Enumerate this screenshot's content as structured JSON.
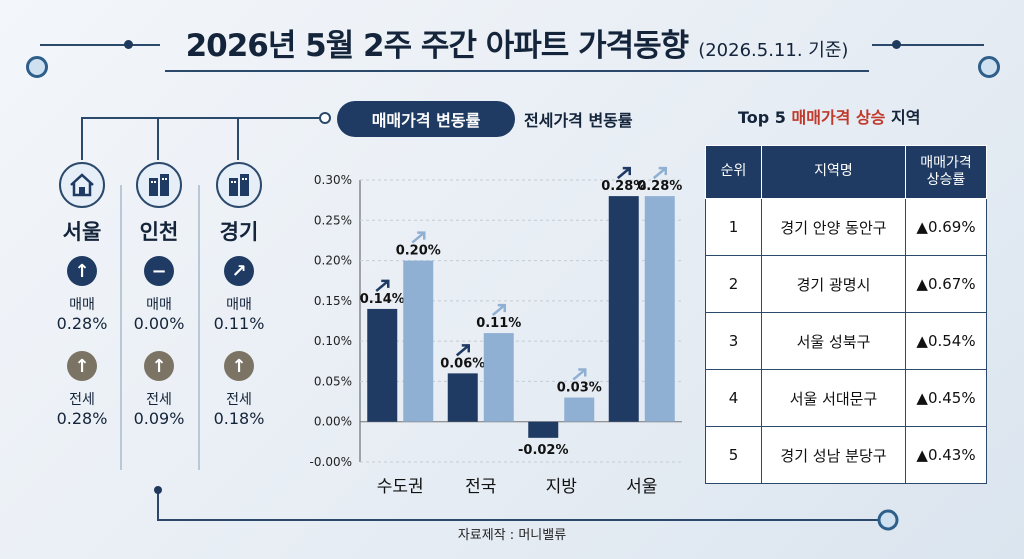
{
  "title": {
    "main": "2026년 5월 2주 주간 아파트 가격동향",
    "sub": "(2026.5.11. 기준)"
  },
  "tabs": {
    "active": "매매가격 변동률",
    "inactive": "전세가격 변동률"
  },
  "regions": [
    {
      "name": "서울",
      "icon": "house-icon",
      "trade_label": "매매",
      "trade_value": "0.28%",
      "trade_trend": "up",
      "lease_label": "전세",
      "lease_value": "0.28%",
      "lease_trend": "up"
    },
    {
      "name": "인천",
      "icon": "buildings-icon",
      "trade_label": "매매",
      "trade_value": "0.00%",
      "trade_trend": "flat",
      "lease_label": "전세",
      "lease_value": "0.09%",
      "lease_trend": "up"
    },
    {
      "name": "경기",
      "icon": "buildings-icon",
      "trade_label": "매매",
      "trade_value": "0.11%",
      "trade_trend": "rising",
      "lease_label": "전세",
      "lease_value": "0.18%",
      "lease_trend": "up"
    }
  ],
  "chart_data": {
    "type": "bar",
    "categories": [
      "수도권",
      "전국",
      "지방",
      "서울"
    ],
    "series": [
      {
        "values": [
          0.14,
          0.06,
          -0.02,
          0.28
        ],
        "labels": [
          "0.14%",
          "0.06%",
          "-0.02%",
          "0.28%"
        ],
        "color": "#1f3b63"
      },
      {
        "values": [
          0.2,
          0.11,
          0.03,
          0.28
        ],
        "labels": [
          "0.20%",
          "0.11%",
          "0.03%",
          "0.28%"
        ],
        "color": "#8fb0d3"
      }
    ],
    "yticks": [
      "0.30%",
      "0.25%",
      "0.20%",
      "0.15%",
      "0.10%",
      "0.05%",
      "0.00%",
      "-0.00%"
    ],
    "ylim": [
      -0.05,
      0.3
    ],
    "grid": true
  },
  "top5": {
    "title_prefix": "Top 5 ",
    "title_highlight": "매매가격 상승",
    "title_suffix": " 지역",
    "headers": [
      "순위",
      "지역명",
      "매매가격 상승률"
    ],
    "rows": [
      {
        "rank": "1",
        "region": "경기 안양 동안구",
        "rate": "▲0.69%"
      },
      {
        "rank": "2",
        "region": "경기 광명시",
        "rate": "▲0.67%"
      },
      {
        "rank": "3",
        "region": "서울 성북구",
        "rate": "▲0.54%"
      },
      {
        "rank": "4",
        "region": "서울 서대문구",
        "rate": "▲0.45%"
      },
      {
        "rank": "5",
        "region": "경기 성남 분당구",
        "rate": "▲0.43%"
      }
    ]
  },
  "source": "자료제작 : 머니밸류",
  "colors": {
    "primary": "#1f3b63",
    "secondary": "#8fb0d3",
    "up": "#b3261e"
  }
}
